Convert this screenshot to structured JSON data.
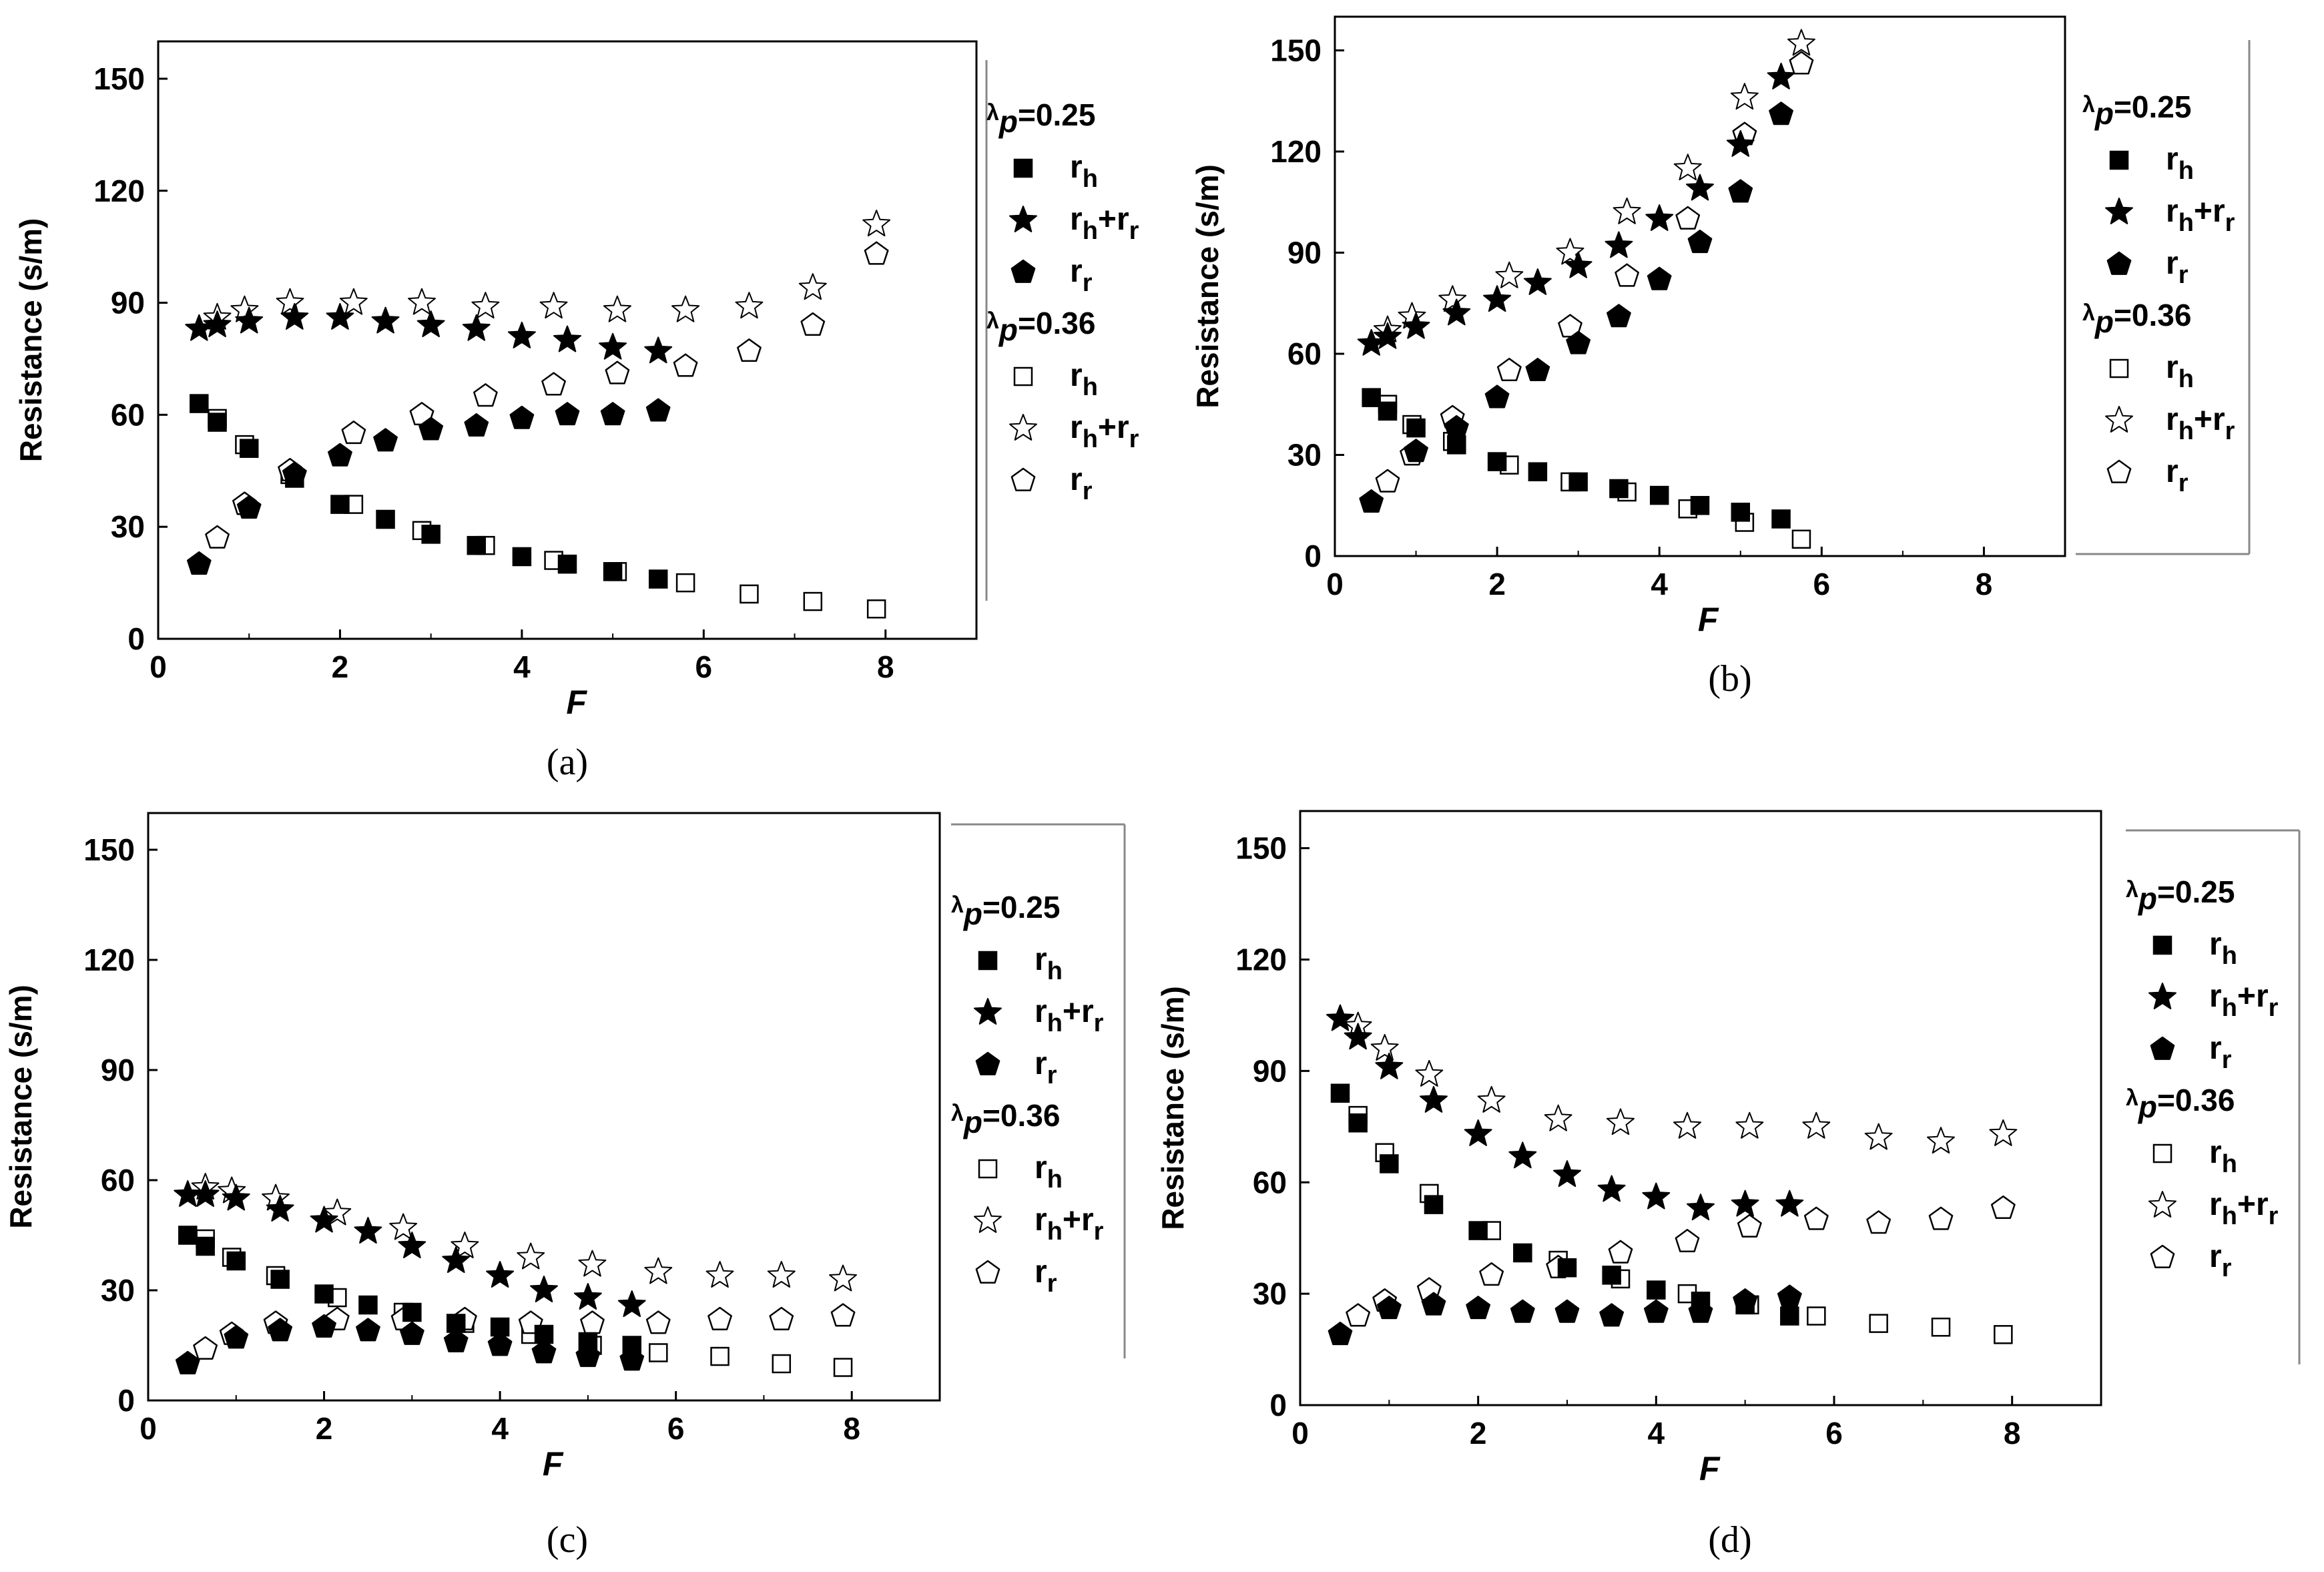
{
  "figure": {
    "panels_order": [
      "a",
      "b",
      "c",
      "d"
    ]
  },
  "chart_data": [
    {
      "panel": "a",
      "type": "scatter",
      "label": "(a)",
      "xlabel": "F",
      "ylabel": "Resistance (s/m)",
      "xlim": [
        0,
        9
      ],
      "ylim": [
        0,
        160
      ],
      "xticks": [
        0,
        2,
        4,
        6,
        8
      ],
      "yticks": [
        0,
        30,
        60,
        90,
        120,
        150
      ],
      "legend": {
        "groups": [
          {
            "symbol": "λ",
            "sub": "p",
            "value": "=0.25",
            "entries": [
              0,
              1,
              2
            ]
          },
          {
            "symbol": "λ",
            "sub": "p",
            "value": "=0.36",
            "entries": [
              3,
              4,
              5
            ]
          }
        ]
      },
      "series": [
        {
          "name": "r",
          "sub": "h",
          "tail": "",
          "marker": "square",
          "filled": true,
          "x": [
            0.45,
            0.65,
            1.0,
            1.5,
            2.0,
            2.5,
            3.0,
            3.5,
            4.0,
            4.5,
            5.0,
            5.5
          ],
          "y": [
            63,
            58,
            51,
            43,
            36,
            32,
            28,
            25,
            22,
            20,
            18,
            16
          ]
        },
        {
          "name": "r",
          "sub": "h",
          "tail": "+r",
          "tailsub": "r",
          "marker": "star",
          "filled": true,
          "x": [
            0.45,
            0.65,
            1.0,
            1.5,
            2.0,
            2.5,
            3.0,
            3.5,
            4.0,
            4.5,
            5.0,
            5.5
          ],
          "y": [
            83,
            84,
            85,
            86,
            86,
            85,
            84,
            83,
            81,
            80,
            78,
            77
          ]
        },
        {
          "name": "r",
          "sub": "r",
          "tail": "",
          "marker": "pentagon",
          "filled": true,
          "x": [
            0.45,
            1.0,
            1.5,
            2.0,
            2.5,
            3.0,
            3.5,
            4.0,
            4.5,
            5.0,
            5.5
          ],
          "y": [
            20,
            35,
            44,
            49,
            53,
            56,
            57,
            59,
            60,
            60,
            61
          ]
        },
        {
          "name": "r",
          "sub": "h",
          "tail": "",
          "marker": "square",
          "filled": false,
          "x": [
            0.65,
            0.95,
            1.45,
            2.15,
            2.9,
            3.6,
            4.35,
            5.05,
            5.8,
            6.5,
            7.2,
            7.9
          ],
          "y": [
            59,
            52,
            44,
            36,
            29,
            25,
            21,
            18,
            15,
            12,
            10,
            8
          ]
        },
        {
          "name": "r",
          "sub": "h",
          "tail": "+r",
          "tailsub": "r",
          "marker": "star",
          "filled": false,
          "x": [
            0.65,
            0.95,
            1.45,
            2.15,
            2.9,
            3.6,
            4.35,
            5.05,
            5.8,
            6.5,
            7.2,
            7.9
          ],
          "y": [
            86,
            88,
            90,
            90,
            90,
            89,
            89,
            88,
            88,
            89,
            94,
            111
          ]
        },
        {
          "name": "r",
          "sub": "r",
          "tail": "",
          "marker": "pentagon",
          "filled": false,
          "x": [
            0.65,
            0.95,
            1.45,
            2.15,
            2.9,
            3.6,
            4.35,
            5.05,
            5.8,
            6.5,
            7.2,
            7.9
          ],
          "y": [
            27,
            36,
            45,
            55,
            60,
            65,
            68,
            71,
            73,
            77,
            84,
            103
          ]
        }
      ]
    },
    {
      "panel": "b",
      "type": "scatter",
      "label": "(b)",
      "xlabel": "F",
      "ylabel": "Resistance (s/m)",
      "xlim": [
        0,
        9
      ],
      "ylim": [
        0,
        160
      ],
      "xticks": [
        0,
        2,
        4,
        6,
        8
      ],
      "yticks": [
        0,
        30,
        60,
        90,
        120,
        150
      ],
      "legend": {
        "groups": [
          {
            "symbol": "λ",
            "sub": "p",
            "value": "=0.25",
            "entries": [
              0,
              1,
              2
            ]
          },
          {
            "symbol": "λ",
            "sub": "p",
            "value": "=0.36",
            "entries": [
              3,
              4,
              5
            ]
          }
        ]
      },
      "series": [
        {
          "name": "r",
          "sub": "h",
          "tail": "",
          "marker": "square",
          "filled": true,
          "x": [
            0.45,
            0.65,
            1.0,
            1.5,
            2.0,
            2.5,
            3.0,
            3.5,
            4.0,
            4.5,
            5.0,
            5.5
          ],
          "y": [
            47,
            43,
            38,
            33,
            28,
            25,
            22,
            20,
            18,
            15,
            13,
            11
          ]
        },
        {
          "name": "r",
          "sub": "h",
          "tail": "+r",
          "tailsub": "r",
          "marker": "star",
          "filled": true,
          "x": [
            0.45,
            0.65,
            1.0,
            1.5,
            2.0,
            2.5,
            3.0,
            3.5,
            4.0,
            4.5,
            5.0,
            5.5
          ],
          "y": [
            63,
            65,
            68,
            72,
            76,
            81,
            86,
            92,
            100,
            109,
            122,
            142
          ]
        },
        {
          "name": "r",
          "sub": "r",
          "tail": "",
          "marker": "pentagon",
          "filled": true,
          "x": [
            0.45,
            1.0,
            1.5,
            2.0,
            2.5,
            3.0,
            3.5,
            4.0,
            4.5,
            5.0,
            5.5
          ],
          "y": [
            16,
            31,
            38,
            47,
            55,
            63,
            71,
            82,
            93,
            108,
            131
          ]
        },
        {
          "name": "r",
          "sub": "h",
          "tail": "",
          "marker": "square",
          "filled": false,
          "x": [
            0.65,
            0.95,
            1.45,
            2.15,
            2.9,
            3.6,
            4.35,
            5.05,
            5.75
          ],
          "y": [
            45,
            39,
            34,
            27,
            22,
            19,
            14,
            10,
            5
          ]
        },
        {
          "name": "r",
          "sub": "h",
          "tail": "+r",
          "tailsub": "r",
          "marker": "star",
          "filled": false,
          "x": [
            0.65,
            0.95,
            1.45,
            2.15,
            2.9,
            3.6,
            4.35,
            5.05,
            5.75
          ],
          "y": [
            67,
            71,
            76,
            83,
            90,
            102,
            115,
            136,
            152
          ]
        },
        {
          "name": "r",
          "sub": "r",
          "tail": "",
          "marker": "pentagon",
          "filled": false,
          "x": [
            0.65,
            0.95,
            1.45,
            2.15,
            2.9,
            3.6,
            4.35,
            5.05,
            5.75
          ],
          "y": [
            22,
            30,
            41,
            55,
            68,
            83,
            100,
            125,
            146
          ]
        }
      ]
    },
    {
      "panel": "c",
      "type": "scatter",
      "label": "(c)",
      "xlabel": "F",
      "ylabel": "Resistance (s/m)",
      "xlim": [
        0,
        9
      ],
      "ylim": [
        0,
        160
      ],
      "xticks": [
        0,
        2,
        4,
        6,
        8
      ],
      "yticks": [
        0,
        30,
        60,
        90,
        120,
        150
      ],
      "legend": {
        "groups": [
          {
            "symbol": "λ",
            "sub": "p",
            "value": "=0.25",
            "entries": [
              0,
              1,
              2
            ]
          },
          {
            "symbol": "λ",
            "sub": "p",
            "value": "=0.36",
            "entries": [
              3,
              4,
              5
            ]
          }
        ]
      },
      "series": [
        {
          "name": "r",
          "sub": "h",
          "tail": "",
          "marker": "square",
          "filled": true,
          "x": [
            0.45,
            0.65,
            1.0,
            1.5,
            2.0,
            2.5,
            3.0,
            3.5,
            4.0,
            4.5,
            5.0,
            5.5
          ],
          "y": [
            45,
            42,
            38,
            33,
            29,
            26,
            24,
            21,
            20,
            18,
            16,
            15
          ]
        },
        {
          "name": "r",
          "sub": "h",
          "tail": "+r",
          "tailsub": "r",
          "marker": "star",
          "filled": true,
          "x": [
            0.45,
            0.65,
            1.0,
            1.5,
            2.0,
            2.5,
            3.0,
            3.5,
            4.0,
            4.5,
            5.0,
            5.5
          ],
          "y": [
            56,
            56,
            55,
            52,
            49,
            46,
            42,
            38,
            34,
            30,
            28,
            26
          ]
        },
        {
          "name": "r",
          "sub": "r",
          "tail": "",
          "marker": "pentagon",
          "filled": true,
          "x": [
            0.45,
            1.0,
            1.5,
            2.0,
            2.5,
            3.0,
            3.5,
            4.0,
            4.5,
            5.0,
            5.5
          ],
          "y": [
            10,
            17,
            19,
            20,
            19,
            18,
            16,
            15,
            13,
            12,
            11
          ]
        },
        {
          "name": "r",
          "sub": "h",
          "tail": "",
          "marker": "square",
          "filled": false,
          "x": [
            0.65,
            0.95,
            1.45,
            2.15,
            2.9,
            3.6,
            4.35,
            5.05,
            5.8,
            6.5,
            7.2,
            7.9
          ],
          "y": [
            44,
            39,
            34,
            28,
            24,
            21,
            18,
            15,
            13,
            12,
            10,
            9
          ]
        },
        {
          "name": "r",
          "sub": "h",
          "tail": "+r",
          "tailsub": "r",
          "marker": "star",
          "filled": false,
          "x": [
            0.65,
            0.95,
            1.45,
            2.15,
            2.9,
            3.6,
            4.35,
            5.05,
            5.8,
            6.5,
            7.2,
            7.9
          ],
          "y": [
            58,
            57,
            55,
            51,
            47,
            42,
            39,
            37,
            35,
            34,
            34,
            33
          ]
        },
        {
          "name": "r",
          "sub": "r",
          "tail": "",
          "marker": "pentagon",
          "filled": false,
          "x": [
            0.65,
            0.95,
            1.45,
            2.15,
            2.9,
            3.6,
            4.35,
            5.05,
            5.8,
            6.5,
            7.2,
            7.9
          ],
          "y": [
            14,
            18,
            21,
            22,
            22,
            22,
            21,
            21,
            21,
            22,
            22,
            23
          ]
        }
      ]
    },
    {
      "panel": "d",
      "type": "scatter",
      "label": "(d)",
      "xlabel": "F",
      "ylabel": "Resistance (s/m)",
      "xlim": [
        0,
        9
      ],
      "ylim": [
        0,
        160
      ],
      "xticks": [
        0,
        2,
        4,
        6,
        8
      ],
      "yticks": [
        0,
        30,
        60,
        90,
        120,
        150
      ],
      "legend": {
        "groups": [
          {
            "symbol": "λ",
            "sub": "p",
            "value": "=0.25",
            "entries": [
              0,
              1,
              2
            ]
          },
          {
            "symbol": "λ",
            "sub": "p",
            "value": "=0.36",
            "entries": [
              3,
              4,
              5
            ]
          }
        ]
      },
      "series": [
        {
          "name": "r",
          "sub": "h",
          "tail": "",
          "marker": "square",
          "filled": true,
          "x": [
            0.45,
            0.65,
            1.0,
            1.5,
            2.0,
            2.5,
            3.0,
            3.5,
            4.0,
            4.5,
            5.0,
            5.5
          ],
          "y": [
            84,
            76,
            65,
            54,
            47,
            41,
            37,
            35,
            31,
            28,
            27,
            24
          ]
        },
        {
          "name": "r",
          "sub": "h",
          "tail": "+r",
          "tailsub": "r",
          "marker": "star",
          "filled": true,
          "x": [
            0.45,
            0.65,
            1.0,
            1.5,
            2.0,
            2.5,
            3.0,
            3.5,
            4.0,
            4.5,
            5.0,
            5.5
          ],
          "y": [
            104,
            99,
            91,
            82,
            73,
            67,
            62,
            58,
            56,
            53,
            54,
            54
          ]
        },
        {
          "name": "r",
          "sub": "r",
          "tail": "",
          "marker": "pentagon",
          "filled": true,
          "x": [
            0.45,
            1.0,
            1.5,
            2.0,
            2.5,
            3.0,
            3.5,
            4.0,
            4.5,
            5.0,
            5.5
          ],
          "y": [
            19,
            26,
            27,
            26,
            25,
            25,
            24,
            25,
            25,
            28,
            29
          ]
        },
        {
          "name": "r",
          "sub": "h",
          "tail": "",
          "marker": "square",
          "filled": false,
          "x": [
            0.65,
            0.95,
            1.45,
            2.15,
            2.9,
            3.6,
            4.35,
            5.05,
            5.8,
            6.5,
            7.2,
            7.9
          ],
          "y": [
            78,
            68,
            57,
            47,
            39,
            34,
            30,
            27,
            24,
            22,
            21,
            19
          ]
        },
        {
          "name": "r",
          "sub": "h",
          "tail": "+r",
          "tailsub": "r",
          "marker": "star",
          "filled": false,
          "x": [
            0.65,
            0.95,
            1.45,
            2.15,
            2.9,
            3.6,
            4.35,
            5.05,
            5.8,
            6.5,
            7.2,
            7.9
          ],
          "y": [
            102,
            96,
            89,
            82,
            77,
            76,
            75,
            75,
            75,
            72,
            71,
            73
          ]
        },
        {
          "name": "r",
          "sub": "r",
          "tail": "",
          "marker": "pentagon",
          "filled": false,
          "x": [
            0.65,
            0.95,
            1.45,
            2.15,
            2.9,
            3.6,
            4.35,
            5.05,
            5.8,
            6.5,
            7.2,
            7.9
          ],
          "y": [
            24,
            28,
            31,
            35,
            37,
            41,
            44,
            48,
            50,
            49,
            50,
            53
          ]
        }
      ]
    }
  ]
}
